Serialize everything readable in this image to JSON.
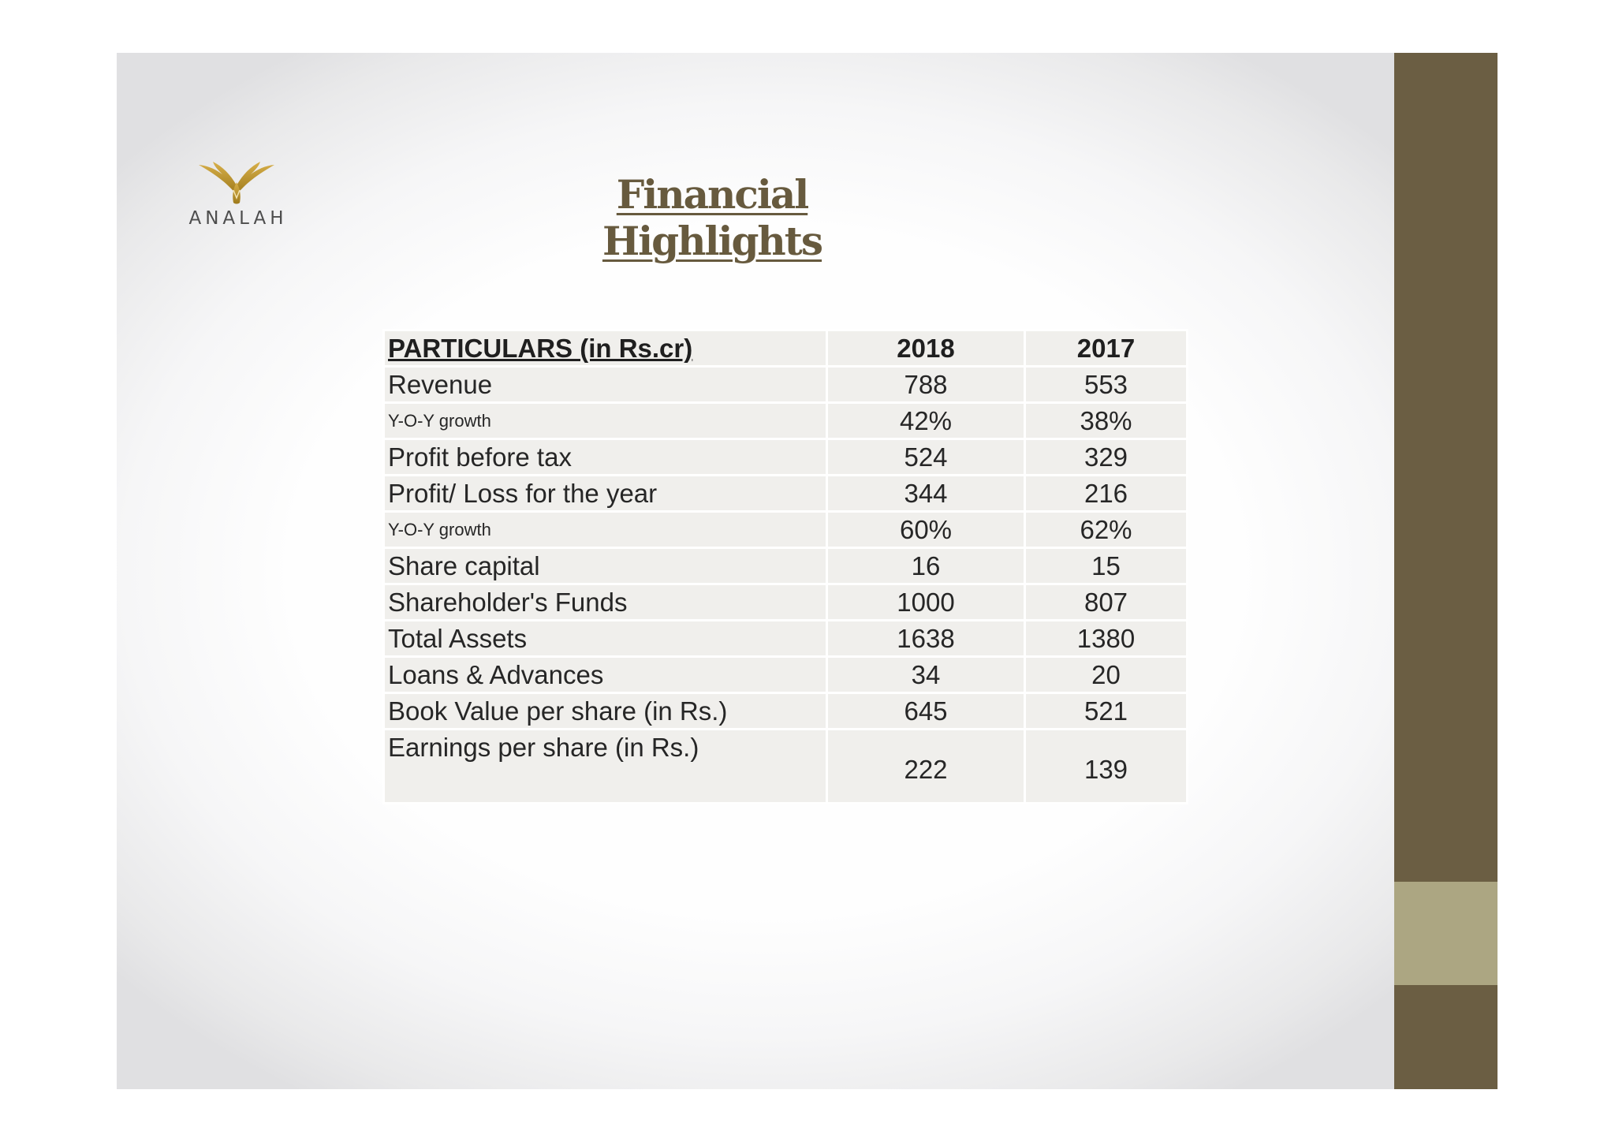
{
  "brand": {
    "name": "ANALAH",
    "accent": "#6b5e43",
    "accent_light": "#aca682",
    "logo_gold": "#c19a2c"
  },
  "title": "Financial Highlights",
  "table": {
    "header": {
      "label": "PARTICULARS (in Rs.cr)",
      "col_2018": "2018",
      "col_2017": "2017"
    },
    "rows": [
      {
        "label": "Revenue",
        "v2018": "788",
        "v2017": "553"
      },
      {
        "label": "Y-O-Y growth",
        "v2018": "42%",
        "v2017": "38%"
      },
      {
        "label": "Profit before tax",
        "v2018": "524",
        "v2017": "329"
      },
      {
        "label": "Profit/ Loss for the year",
        "v2018": "344",
        "v2017": "216"
      },
      {
        "label": "Y-O-Y growth",
        "v2018": "60%",
        "v2017": "62%"
      },
      {
        "label": "Share capital",
        "v2018": "16",
        "v2017": "15"
      },
      {
        "label": "Shareholder's Funds",
        "v2018": "1000",
        "v2017": "807"
      },
      {
        "label": "Total Assets",
        "v2018": "1638",
        "v2017": "1380"
      },
      {
        "label": "Loans & Advances",
        "v2018": "34",
        "v2017": "20"
      },
      {
        "label": "Book Value per share (in Rs.)",
        "v2018": "645",
        "v2017": "521"
      },
      {
        "label": "Earnings per share (in Rs.)",
        "v2018": "222",
        "v2017": "139"
      }
    ]
  }
}
